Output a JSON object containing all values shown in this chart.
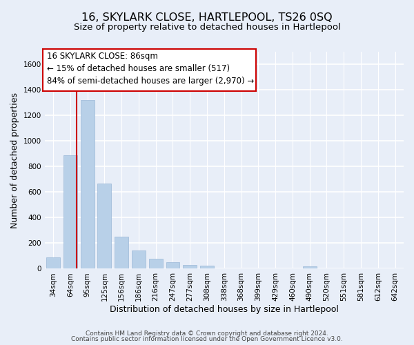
{
  "title": "16, SKYLARK CLOSE, HARTLEPOOL, TS26 0SQ",
  "subtitle": "Size of property relative to detached houses in Hartlepool",
  "xlabel": "Distribution of detached houses by size in Hartlepool",
  "ylabel": "Number of detached properties",
  "footer_line1": "Contains HM Land Registry data © Crown copyright and database right 2024.",
  "footer_line2": "Contains public sector information licensed under the Open Government Licence v3.0.",
  "bar_labels": [
    "34sqm",
    "64sqm",
    "95sqm",
    "125sqm",
    "156sqm",
    "186sqm",
    "216sqm",
    "247sqm",
    "277sqm",
    "308sqm",
    "338sqm",
    "368sqm",
    "399sqm",
    "429sqm",
    "460sqm",
    "490sqm",
    "520sqm",
    "551sqm",
    "581sqm",
    "612sqm",
    "642sqm"
  ],
  "bar_values": [
    88,
    890,
    1320,
    670,
    252,
    143,
    80,
    52,
    30,
    22,
    5,
    5,
    0,
    0,
    0,
    18,
    0,
    0,
    0,
    0,
    0
  ],
  "bar_color": "#b8d0e8",
  "bar_edge_color": "#9ab8d8",
  "marker_line_color": "#cc0000",
  "annotation_line1": "16 SKYLARK CLOSE: 86sqm",
  "annotation_line2": "← 15% of detached houses are smaller (517)",
  "annotation_line3": "84% of semi-detached houses are larger (2,970) →",
  "ylim": [
    0,
    1700
  ],
  "yticks": [
    0,
    200,
    400,
    600,
    800,
    1000,
    1200,
    1400,
    1600
  ],
  "background_color": "#e8eef8",
  "plot_bg_color": "#e8eef8",
  "grid_color": "#ffffff",
  "title_fontsize": 11.5,
  "subtitle_fontsize": 9.5,
  "axis_label_fontsize": 9,
  "tick_fontsize": 7.5,
  "footer_fontsize": 6.5,
  "annotation_fontsize": 8.5
}
